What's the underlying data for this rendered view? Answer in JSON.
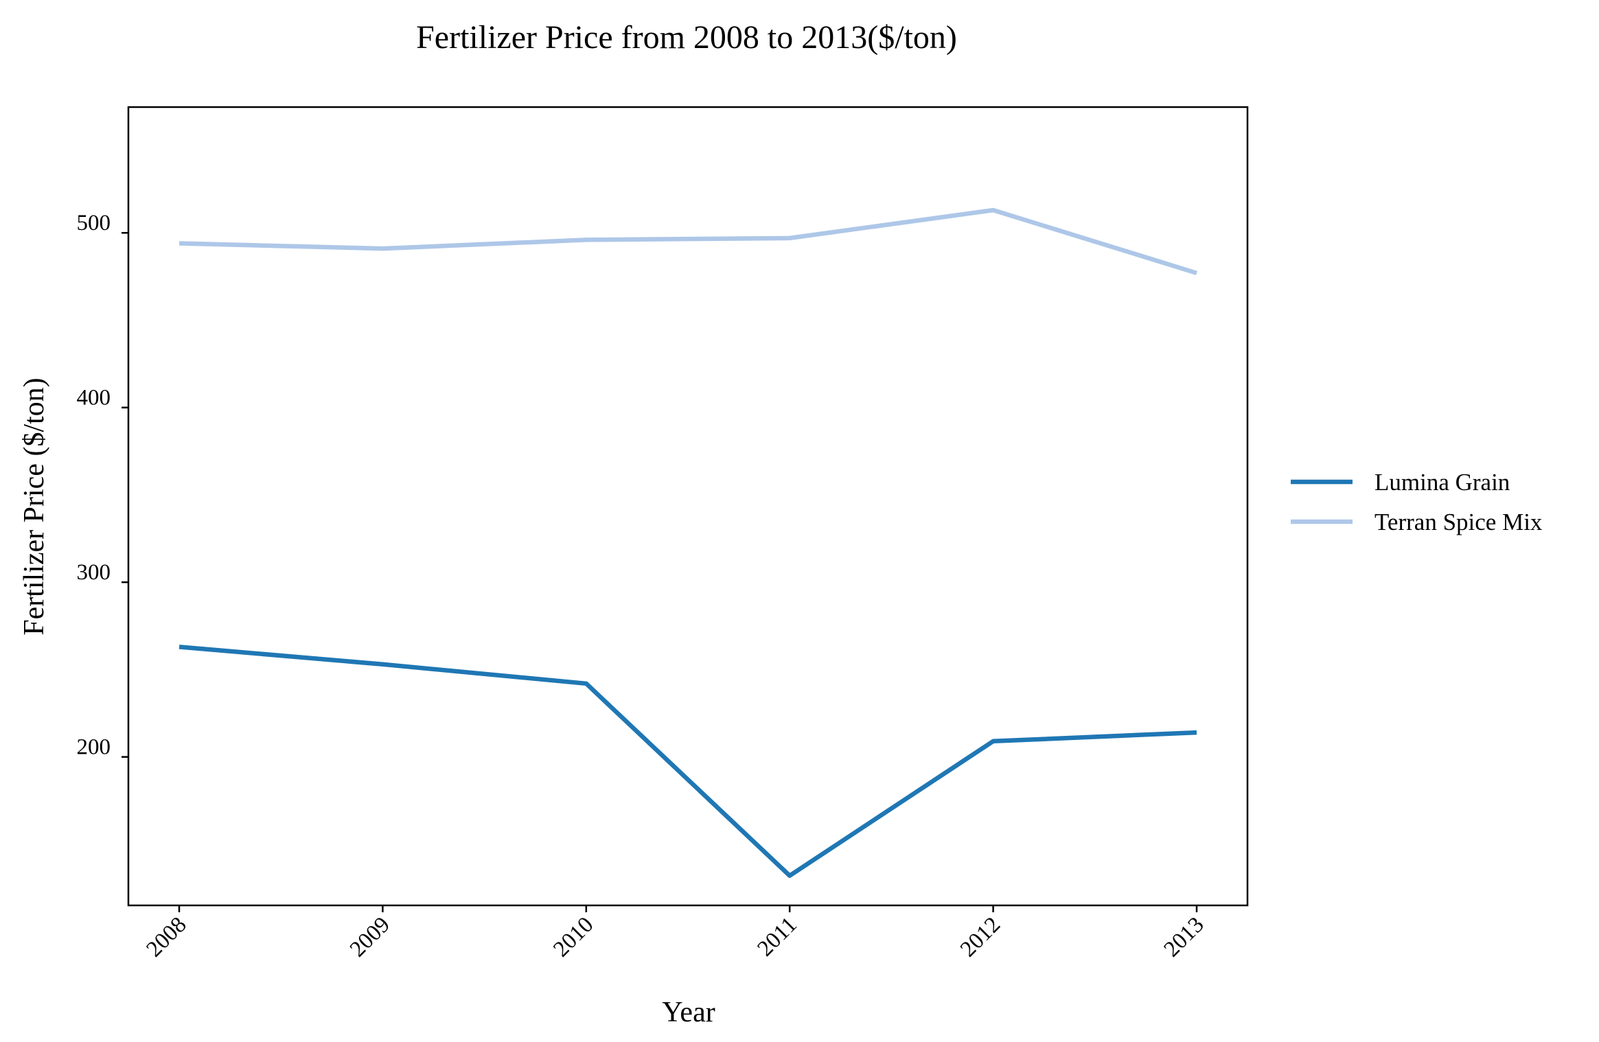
{
  "chart_data": {
    "type": "line",
    "title": "Fertilizer Price from 2008 to 2013($/ton)",
    "xlabel": "Year",
    "ylabel": "Fertilizer Price ($/ton)",
    "categories": [
      "2008",
      "2009",
      "2010",
      "2011",
      "2012",
      "2013"
    ],
    "yticks": [
      "200",
      "300",
      "400",
      "500"
    ],
    "ylim": [
      115,
      572
    ],
    "grid": false,
    "legend_position": "right",
    "series": [
      {
        "name": "Lumina Grain",
        "color": "#1f77b4",
        "values": [
          263,
          253,
          242,
          132,
          209,
          214
        ]
      },
      {
        "name": "Terran Spice Mix",
        "color": "#aec7e8",
        "values": [
          494,
          491,
          496,
          497,
          513,
          477
        ]
      }
    ]
  }
}
